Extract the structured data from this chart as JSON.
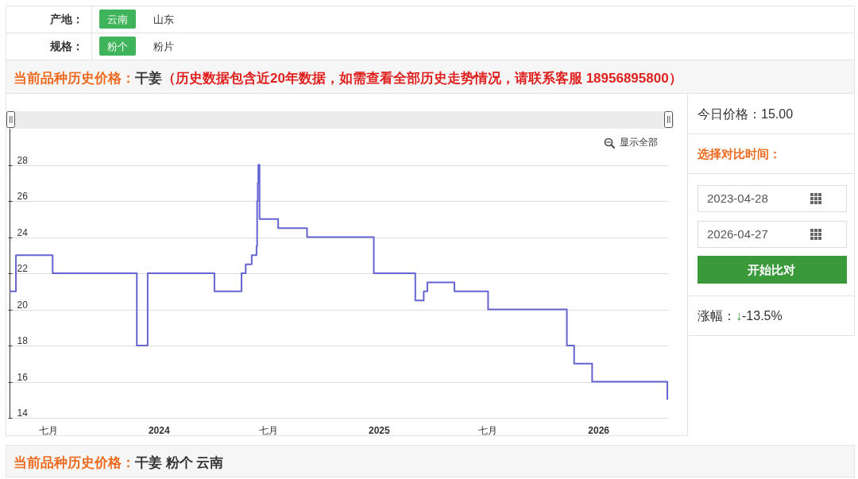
{
  "chart_data": {
    "type": "step",
    "title": "干姜",
    "subtitle": "（历史数据包含近20年数据，如需查看全部历史走势情况，请联系客服 18956895800）",
    "annotations": [
      "产地：",
      "云南",
      "山东",
      "规格：",
      "粉个",
      "粉片",
      "当前品种历史价格：",
      "显示全部",
      "今日价格：15.00",
      "选择对比时间：",
      "2023-04-28",
      "2026-04-27",
      "开始比对",
      "涨幅：",
      "↓",
      "-13.5%",
      "当前品种历史价格：",
      "干姜 粉个 云南"
    ],
    "x": [
      "2023-04-28",
      "2023-05-08",
      "2023-07-08",
      "2023-11-25",
      "2023-12-13",
      "2024-04-02",
      "2024-05-17",
      "2024-05-24",
      "2024-06-03",
      "2024-06-11",
      "2024-06-12",
      "2024-06-13",
      "2024-06-14",
      "2024-06-16",
      "2024-07-17",
      "2024-09-03",
      "2024-12-23",
      "2025-03-02",
      "2025-03-16",
      "2025-03-22",
      "2025-05-06",
      "2025-07-01",
      "2025-11-09",
      "2025-11-21",
      "2025-12-21",
      "2026-04-25"
    ],
    "series": [
      {
        "color": "#6464d2",
        "values": [
          21,
          23,
          22,
          18,
          22,
          21,
          22,
          22.5,
          23,
          23.5,
          26,
          27,
          28,
          25,
          24.5,
          24,
          22,
          20.5,
          21,
          21.5,
          21,
          20,
          18,
          17,
          16,
          15
        ]
      }
    ],
    "xlim": [
      "2023-04-28",
      "2026-04-27"
    ],
    "ylim": [
      14,
      30
    ],
    "xticks": [
      {
        "value": "2023-07-01",
        "label": "七月"
      },
      {
        "value": "2024-01-01",
        "label": "2024"
      },
      {
        "value": "2024-07-01",
        "label": "七月"
      },
      {
        "value": "2025-01-01",
        "label": "2025"
      },
      {
        "value": "2025-07-01",
        "label": "七月"
      },
      {
        "value": "2026-01-01",
        "label": "2026"
      }
    ],
    "yticks": [
      14,
      16,
      18,
      20,
      22,
      24,
      26,
      28
    ],
    "grid": "y"
  }
}
